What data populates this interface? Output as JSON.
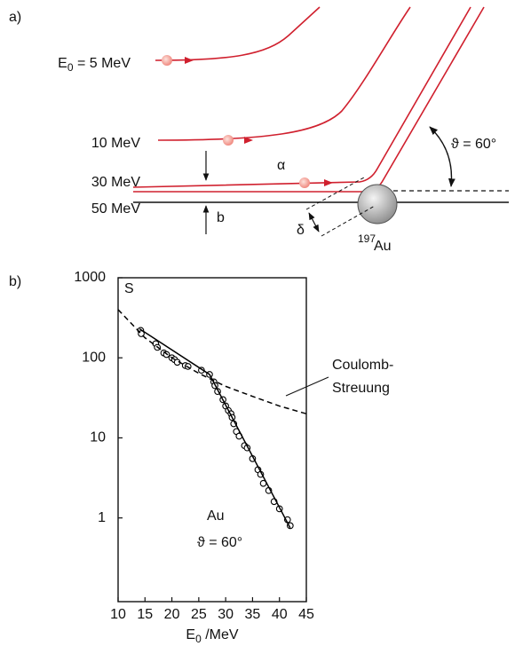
{
  "panel_a": {
    "label": "a)",
    "e_main": "E",
    "e_sub": "0",
    "e_rest": " = 5 MeV",
    "energies": [
      "10 MeV",
      "30 MeV",
      "50 MeV"
    ],
    "alpha": "α",
    "b": "b",
    "delta": "δ",
    "angle": "ϑ = 60°",
    "mass": "197",
    "element": "Au"
  },
  "chart_data": {
    "type": "scatter",
    "panel_label": "b)",
    "ylabel": "S",
    "xlabel_main": "E",
    "xlabel_sub": "0",
    "xlabel_unit": " /MeV",
    "annotations": [
      "Coulomb-",
      "Streuung",
      "Au",
      "ϑ = 60°"
    ],
    "xlim": [
      10,
      45
    ],
    "xticks": [
      10,
      15,
      20,
      25,
      30,
      35,
      40,
      45
    ],
    "ylim": [
      0.09,
      1000
    ],
    "yticks": [
      1,
      10,
      100,
      1000
    ],
    "log_y": true,
    "series": [
      {
        "style": "markers",
        "color": "#000000",
        "x": [
          14.2,
          14.3,
          17,
          17.3,
          18.5,
          19,
          20,
          20.5,
          21,
          22.5,
          23,
          25.5,
          27,
          27.8,
          28,
          28.5,
          29.5,
          30,
          30.5,
          31,
          31.2,
          31.5,
          32,
          32.5,
          33.5,
          34,
          35,
          36,
          36.5,
          37,
          38,
          39,
          40,
          41.5,
          42
        ],
        "values": [
          220,
          200,
          150,
          135,
          115,
          110,
          100,
          95,
          88,
          80,
          78,
          70,
          62,
          50,
          45,
          38,
          30,
          25,
          22,
          20,
          18,
          15,
          12,
          10.5,
          8,
          7.5,
          5.5,
          4,
          3.5,
          2.7,
          2.2,
          1.6,
          1.3,
          0.95,
          0.8
        ]
      },
      {
        "style": "solid",
        "color": "#000000",
        "x": [
          14,
          27,
          42
        ],
        "values": [
          230,
          62,
          0.75
        ]
      },
      {
        "style": "dashed",
        "color": "#000000",
        "x": [
          10,
          15,
          20,
          25,
          30,
          35,
          40,
          45
        ],
        "values": [
          400,
          178,
          100,
          64,
          44,
          33,
          25,
          20
        ]
      }
    ]
  }
}
